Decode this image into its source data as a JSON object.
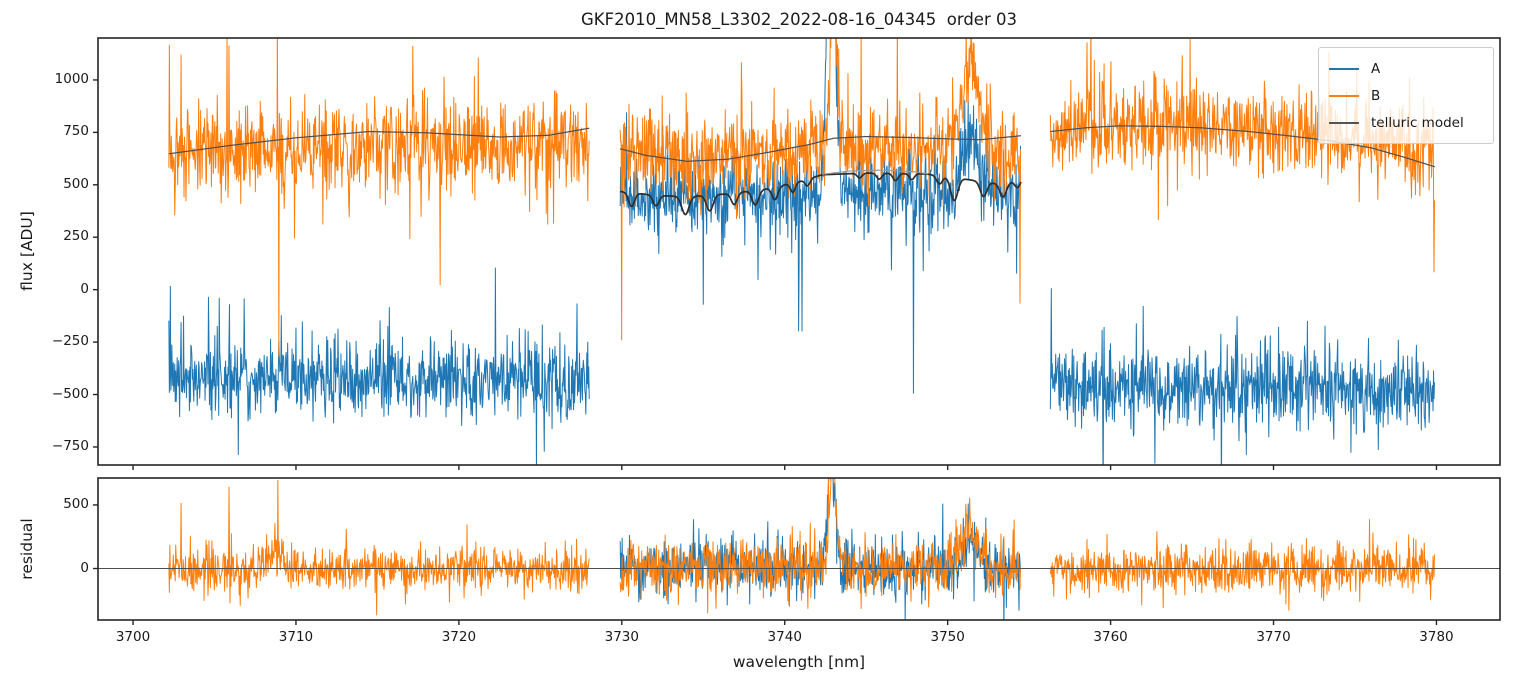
{
  "chart_data": {
    "type": "line",
    "title": "GKF2010_MN58_L3302_2022-08-16_04345  order 03",
    "xlabel": "wavelength [nm]",
    "xlim": [
      3697.85,
      3783.9
    ],
    "xticks": [
      3700,
      3710,
      3720,
      3730,
      3740,
      3750,
      3760,
      3770,
      3780
    ],
    "sample_step": 0.03,
    "grid": false,
    "panels": [
      {
        "name": "flux",
        "ylabel": "flux [ADU]",
        "ylim": [
          -836,
          1200
        ],
        "yticks": [
          -750,
          -500,
          -250,
          0,
          250,
          500,
          750,
          1000
        ],
        "zero_line": false
      },
      {
        "name": "residual",
        "ylabel": "residual",
        "ylim": [
          -405,
          712
        ],
        "yticks": [
          0,
          500
        ],
        "zero_line": true
      }
    ],
    "segments": [
      [
        3702.2,
        3728.0
      ],
      [
        3729.9,
        3754.5
      ],
      [
        3756.3,
        3779.9
      ]
    ],
    "legend": {
      "position": "upper right",
      "entries": [
        {
          "label": "A",
          "color": "#1f77b4"
        },
        {
          "label": "B",
          "color": "#ff7f0e"
        },
        {
          "label": "telluric model",
          "color": "#545454"
        }
      ]
    },
    "features": {
      "emission_line_nm": 3742.9,
      "secondary_feature_nm": 3751.4
    },
    "series": [
      {
        "name": "A",
        "panel": "flux",
        "color": "#1f77b4",
        "seed": 7,
        "segments": [
          {
            "range": [
              3702.2,
              3728.0
            ],
            "base": [
              [
                3702.2,
                -410
              ],
              [
                3708,
                -430
              ],
              [
                3716,
                -420
              ],
              [
                3724,
                -430
              ],
              [
                3728,
                -425
              ]
            ],
            "sigma": 95,
            "tail_prob": 0.011,
            "tail_scale": 230,
            "tail_bias": 0.68,
            "events": [
              {
                "wl": 3702.3,
                "amp": 430
              },
              {
                "wl": 3705.3,
                "amp": 330
              },
              {
                "wl": 3727.9,
                "amp": 300
              }
            ]
          },
          {
            "range": [
              3729.9,
              3754.5
            ],
            "base": [
              [
                3729.9,
                435
              ],
              [
                3734,
                445
              ],
              [
                3739,
                455
              ],
              [
                3744,
                470
              ],
              [
                3749,
                465
              ],
              [
                3754.5,
                450
              ]
            ],
            "sigma": 92,
            "tail_prob": 0.016,
            "tail_scale": 210,
            "tail_bias": 0.3,
            "gaussians": [
              {
                "c": 3742.85,
                "a": 1600,
                "s": 0.25
              },
              {
                "c": 3751.5,
                "a": 270,
                "s": 0.5
              }
            ],
            "events": [
              {
                "wl": 3747.9,
                "amp": -720
              },
              {
                "wl": 3741.05,
                "amp": -560
              },
              {
                "wl": 3735.0,
                "amp": -480
              }
            ]
          },
          {
            "range": [
              3756.3,
              3779.9
            ],
            "base": [
              [
                3756.3,
                -440
              ],
              [
                3764,
                -470
              ],
              [
                3772,
                -475
              ],
              [
                3779.9,
                -485
              ]
            ],
            "sigma": 98,
            "tail_prob": 0.011,
            "tail_scale": 240,
            "tail_bias": 0.7,
            "events": [
              {
                "wl": 3756.35,
                "amp": 400
              },
              {
                "wl": 3762.0,
                "amp": 380
              },
              {
                "wl": 3770.3,
                "amp": 350
              }
            ]
          }
        ]
      },
      {
        "name": "B",
        "panel": "flux",
        "color": "#ff7f0e",
        "seed": 13,
        "segments": [
          {
            "range": [
              3702.2,
              3728.0
            ],
            "base": [
              [
                3702.2,
                655
              ],
              [
                3708,
                672
              ],
              [
                3714,
                690
              ],
              [
                3720,
                672
              ],
              [
                3728,
                690
              ]
            ],
            "sigma": 108,
            "tail_prob": 0.012,
            "tail_scale": 260,
            "tail_bias": 0.62,
            "events": [
              {
                "wl": 3702.95,
                "amp": 470
              },
              {
                "wl": 3705.9,
                "amp": 480
              },
              {
                "wl": 3708.85,
                "amp": 515
              },
              {
                "wl": 3708.95,
                "amp": -1070
              },
              {
                "wl": 3719.1,
                "amp": 520
              }
            ]
          },
          {
            "range": [
              3729.9,
              3754.5
            ],
            "base": [
              [
                3729.9,
                650
              ],
              [
                3733.5,
                628
              ],
              [
                3738,
                650
              ],
              [
                3743,
                692
              ],
              [
                3748,
                680
              ],
              [
                3754.5,
                662
              ]
            ],
            "sigma": 106,
            "tail_prob": 0.012,
            "tail_scale": 250,
            "tail_bias": 0.6,
            "gaussians": [
              {
                "c": 3743.0,
                "a": 900,
                "s": 0.18
              },
              {
                "c": 3751.4,
                "a": 420,
                "s": 0.45
              }
            ],
            "events": [
              {
                "wl": 3730.0,
                "amp": -700
              },
              {
                "wl": 3754.45,
                "amp": -690
              }
            ]
          },
          {
            "range": [
              3756.3,
              3779.9
            ],
            "base": [
              [
                3756.3,
                760
              ],
              [
                3761,
                788
              ],
              [
                3766,
                772
              ],
              [
                3771,
                748
              ],
              [
                3776,
                702
              ],
              [
                3779.9,
                640
              ]
            ],
            "sigma": 108,
            "tail_prob": 0.012,
            "tail_scale": 260,
            "tail_bias": 0.62,
            "events": [
              {
                "wl": 3758.8,
                "amp": 470
              },
              {
                "wl": 3773.4,
                "amp": 480
              },
              {
                "wl": 3779.85,
                "amp": -590
              }
            ]
          }
        ]
      },
      {
        "name": "A residual",
        "panel": "residual",
        "color": "#1f77b4",
        "seed": 23,
        "segments": [
          {
            "range": [
              3729.9,
              3754.5
            ],
            "base": [
              [
                3729.9,
                0
              ],
              [
                3754.5,
                0
              ]
            ],
            "sigma": 108,
            "tail_prob": 0.012,
            "tail_scale": 180,
            "tail_bias": 0.45,
            "gaussians": [
              {
                "c": 3742.85,
                "a": 820,
                "s": 0.22
              },
              {
                "c": 3751.45,
                "a": 215,
                "s": 0.5
              }
            ]
          }
        ]
      },
      {
        "name": "B residual",
        "panel": "residual",
        "color": "#ff7f0e",
        "seed": 31,
        "segments": [
          {
            "range": [
              3702.2,
              3728.0
            ],
            "base": [
              [
                3702.2,
                0
              ],
              [
                3728,
                0
              ]
            ],
            "sigma": 88,
            "tail_prob": 0.011,
            "tail_scale": 170,
            "tail_bias": 0.55,
            "gaussians": [
              {
                "c": 3708.8,
                "a": 150,
                "s": 0.45
              }
            ],
            "events": [
              {
                "wl": 3702.95,
                "amp": 545
              },
              {
                "wl": 3705.9,
                "amp": 660
              },
              {
                "wl": 3708.9,
                "amp": 620
              },
              {
                "wl": 3713.1,
                "amp": 380
              }
            ]
          },
          {
            "range": [
              3729.9,
              3754.5
            ],
            "base": [
              [
                3729.9,
                0
              ],
              [
                3754.5,
                0
              ]
            ],
            "sigma": 108,
            "tail_prob": 0.012,
            "tail_scale": 180,
            "tail_bias": 0.5,
            "gaussians": [
              {
                "c": 3742.95,
                "a": 880,
                "s": 0.2
              },
              {
                "c": 3751.3,
                "a": 320,
                "s": 0.5
              }
            ]
          },
          {
            "range": [
              3756.3,
              3779.9
            ],
            "base": [
              [
                3756.3,
                0
              ],
              [
                3779.9,
                0
              ]
            ],
            "sigma": 96,
            "tail_prob": 0.011,
            "tail_scale": 170,
            "tail_bias": 0.55,
            "events": [
              {
                "wl": 3775.9,
                "amp": 430
              }
            ]
          }
        ]
      }
    ],
    "telluric_model": {
      "color_upper": "#4d4d4d",
      "color_lower": "#2d2d2d",
      "color_overlay": "#999999",
      "upper": [
        [
          [
            3702.2,
            648
          ],
          [
            3706,
            688
          ],
          [
            3710,
            724
          ],
          [
            3714.5,
            754
          ],
          [
            3718,
            748
          ],
          [
            3722.5,
            728
          ],
          [
            3725.5,
            736
          ],
          [
            3728,
            770
          ]
        ],
        [
          [
            3729.9,
            672
          ],
          [
            3731.5,
            640
          ],
          [
            3734,
            612
          ],
          [
            3736.5,
            622
          ],
          [
            3739,
            655
          ],
          [
            3741.5,
            692
          ],
          [
            3743,
            722
          ],
          [
            3745,
            730
          ],
          [
            3747.5,
            726
          ],
          [
            3750,
            719
          ],
          [
            3752,
            715
          ],
          [
            3754.5,
            734
          ]
        ],
        [
          [
            3756.3,
            754
          ],
          [
            3758.5,
            772
          ],
          [
            3760.5,
            781
          ],
          [
            3763,
            779
          ],
          [
            3765.5,
            772
          ],
          [
            3768.5,
            754
          ],
          [
            3771,
            733
          ],
          [
            3773.5,
            710
          ],
          [
            3776,
            676
          ],
          [
            3778,
            632
          ],
          [
            3779.9,
            586
          ]
        ]
      ],
      "lower": {
        "range": [
          3729.9,
          3754.5
        ],
        "base": [
          [
            3729.9,
            468
          ],
          [
            3732,
            450
          ],
          [
            3734,
            443
          ],
          [
            3736.5,
            457
          ],
          [
            3739,
            482
          ],
          [
            3741,
            518
          ],
          [
            3742.3,
            548
          ],
          [
            3745,
            556
          ],
          [
            3748.6,
            552
          ],
          [
            3750,
            540
          ],
          [
            3752,
            516
          ],
          [
            3753.5,
            502
          ],
          [
            3754.5,
            536
          ]
        ],
        "dips": [
          [
            3730.6,
            65,
            0.18
          ],
          [
            3732.1,
            50,
            0.18
          ],
          [
            3733.9,
            85,
            0.22
          ],
          [
            3735.4,
            75,
            0.2
          ],
          [
            3736.9,
            55,
            0.18
          ],
          [
            3738.2,
            70,
            0.2
          ],
          [
            3739.4,
            60,
            0.18
          ],
          [
            3740.5,
            45,
            0.15
          ],
          [
            3741.4,
            32,
            0.15
          ],
          [
            3744.6,
            22,
            0.15
          ],
          [
            3745.8,
            28,
            0.16
          ],
          [
            3746.8,
            34,
            0.16
          ],
          [
            3747.8,
            28,
            0.15
          ],
          [
            3749.5,
            40,
            0.18
          ],
          [
            3750.4,
            110,
            0.22
          ],
          [
            3752.2,
            70,
            0.2
          ],
          [
            3753.4,
            60,
            0.2
          ],
          [
            3754.3,
            42,
            0.18
          ]
        ]
      },
      "overlay": {
        "pts": [
          [
            3742.3,
            550
          ],
          [
            3744,
            566
          ],
          [
            3746,
            570
          ],
          [
            3748,
            562
          ],
          [
            3748.8,
            552
          ]
        ]
      }
    }
  }
}
